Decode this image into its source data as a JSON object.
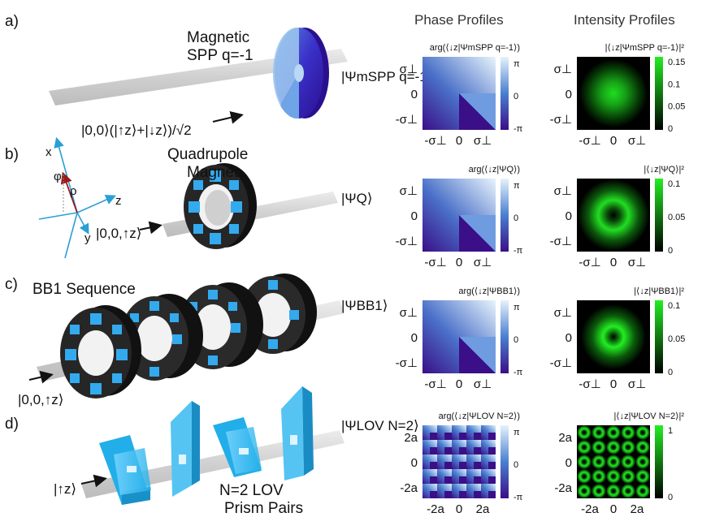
{
  "headers": {
    "phase": "Phase Profiles",
    "intensity": "Intensity Profiles"
  },
  "rows": [
    {
      "letter": "a)",
      "device": [
        "Magnetic",
        "SPP q=-1"
      ],
      "input": "|0,0⟩(|↑z⟩+|↓z⟩)/√2",
      "output": "|ΨmSPP q=-1⟩",
      "phase_label": "arg(⟨↓z|ΨmSPP q=-1⟩)",
      "intensity_label": "|⟨↓z|ΨmSPP q=-1⟩|²",
      "colorbar_ticks": [
        "0.15",
        "0.1",
        "0.05",
        "0"
      ],
      "phase_ticks": [
        "π",
        "0",
        "-π"
      ],
      "y_ticks": [
        "σ⊥",
        "0",
        "-σ⊥"
      ],
      "x_ticks": [
        "-σ⊥",
        "0",
        "σ⊥"
      ]
    },
    {
      "letter": "b)",
      "device": [
        "Quadrupole",
        "Magnet"
      ],
      "input": "|0,0,↑z⟩",
      "output": "|ΨQ⟩",
      "phase_label": "arg(⟨↓z|ΨQ⟩)",
      "intensity_label": "|⟨↓z|ΨQ⟩|²",
      "colorbar_ticks": [
        "0.1",
        "0.05",
        "0"
      ],
      "phase_ticks": [
        "π",
        "0",
        "-π"
      ],
      "y_ticks": [
        "σ⊥",
        "0",
        "-σ⊥"
      ],
      "x_ticks": [
        "-σ⊥",
        "0",
        "σ⊥"
      ],
      "axes": {
        "x": "x",
        "y": "y",
        "z": "z",
        "phi": "φ",
        "rho": "ρ"
      }
    },
    {
      "letter": "c)",
      "device": [
        "BB1 Sequence"
      ],
      "input": "|0,0,↑z⟩",
      "output": "|ΨBB1⟩",
      "phase_label": "arg(⟨↓z|ΨBB1⟩)",
      "intensity_label": "|⟨↓z|ΨBB1⟩|²",
      "colorbar_ticks": [
        "0.1",
        "0.05",
        "0"
      ],
      "phase_ticks": [
        "π",
        "0",
        "-π"
      ],
      "y_ticks": [
        "σ⊥",
        "0",
        "-σ⊥"
      ],
      "x_ticks": [
        "-σ⊥",
        "0",
        "σ⊥"
      ]
    },
    {
      "letter": "d)",
      "device": [
        "N=2 LOV",
        "Prism Pairs"
      ],
      "input": "|↑z⟩",
      "output": "|ΨLOV N=2⟩",
      "phase_label": "arg(⟨↓z|ΨLOV N=2⟩)",
      "intensity_label": "|⟨↓z|ΨLOV N=2⟩|²",
      "colorbar_ticks": [
        "1",
        "0"
      ],
      "phase_ticks": [
        "π",
        "0",
        "-π"
      ],
      "y_ticks": [
        "2a",
        "0",
        "-2a"
      ],
      "x_ticks": [
        "-2a",
        "0",
        "2a"
      ]
    }
  ],
  "colors": {
    "phase_light": "#e6f2fb",
    "phase_mid": "#4a7fd0",
    "phase_dark": "#3a0f88",
    "intensity": "#22ee22",
    "magnet_blue": "#33aaee",
    "beam": "#d2d2d2"
  }
}
